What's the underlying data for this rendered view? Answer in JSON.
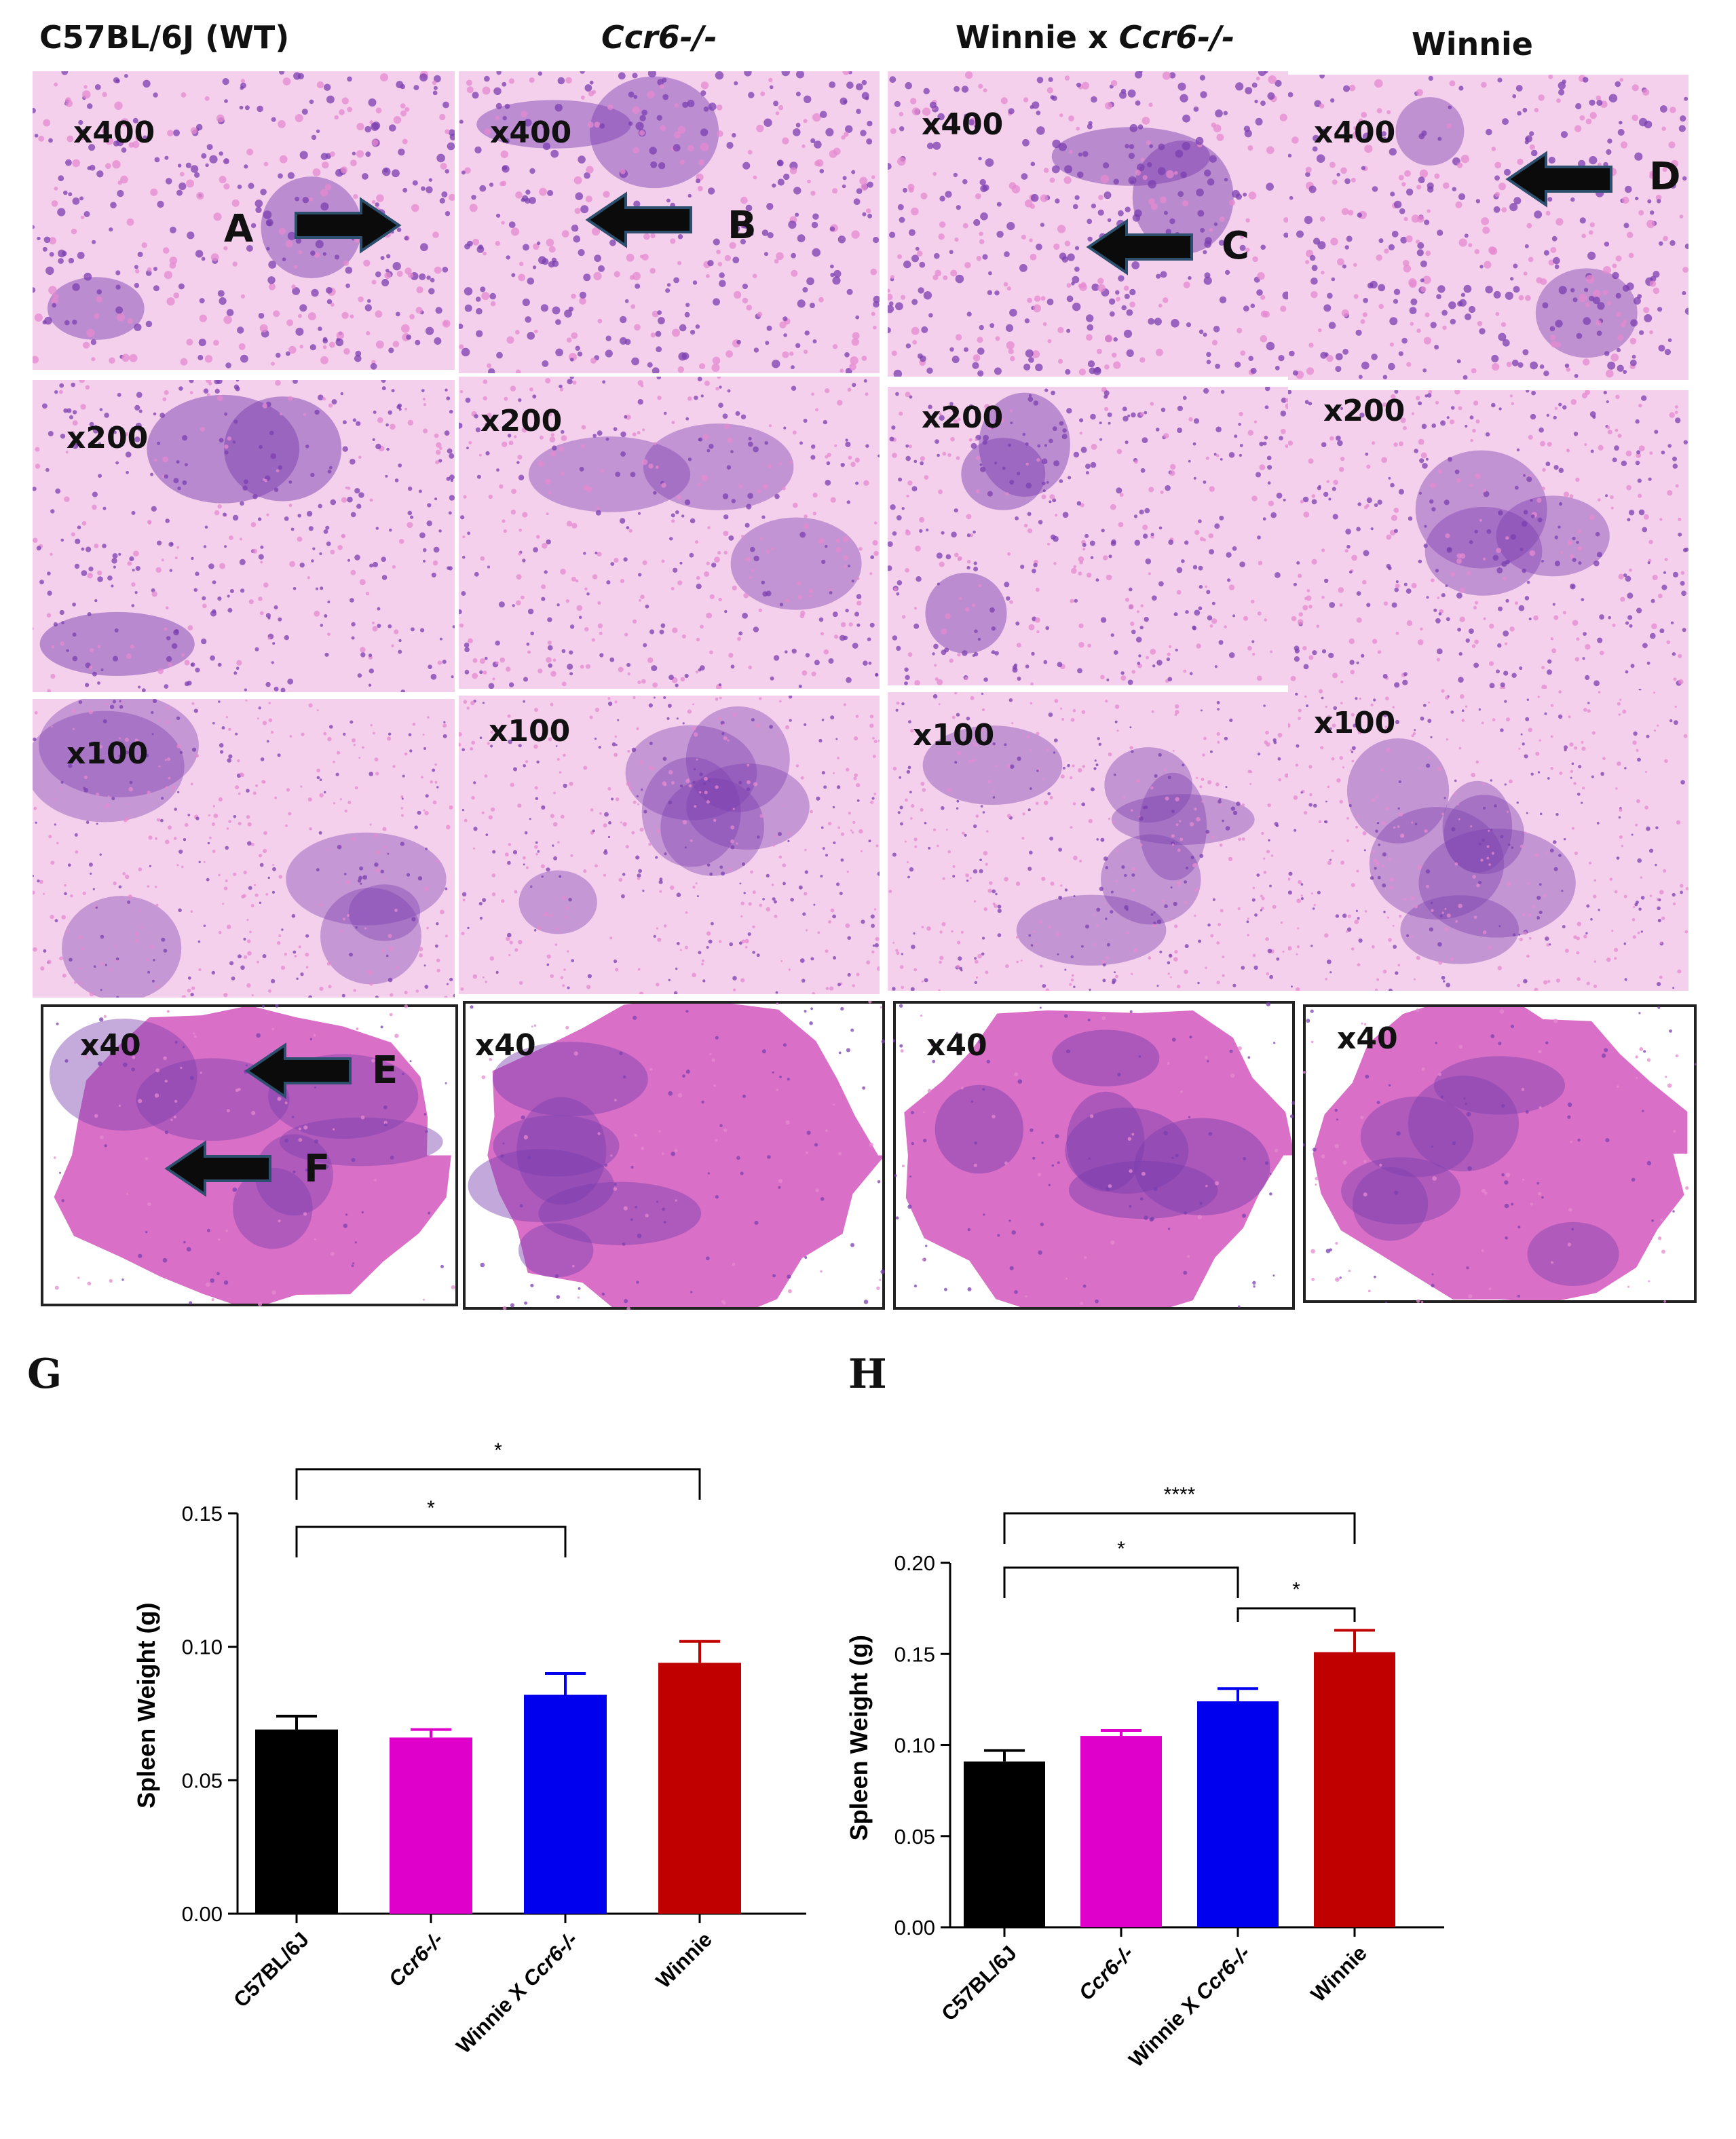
{
  "figure": {
    "column_headers": [
      {
        "prefix": "C57BL/6J (WT)",
        "italic": ""
      },
      {
        "prefix": "",
        "italic": "Ccr6-/-"
      },
      {
        "prefix": "Winnie x ",
        "italic": "Ccr6-/-"
      },
      {
        "prefix": "Winnie",
        "italic": ""
      }
    ],
    "rows": [
      {
        "magnification": "x400",
        "arrows": [
          "A",
          "B",
          "C",
          "D"
        ]
      },
      {
        "magnification": "x200",
        "arrows": []
      },
      {
        "magnification": "x100",
        "arrows": []
      },
      {
        "magnification": "x40",
        "arrows": [
          "E",
          "F"
        ]
      }
    ],
    "stain_colors": {
      "nuclei": "#7b3fb0",
      "eosin": "#e58ad0",
      "background": "#f4d0ec"
    },
    "panels": {
      "g": "G",
      "h": "H"
    }
  },
  "chart_data": [
    {
      "panel": "G",
      "type": "bar",
      "categories": [
        "C57BL/6J",
        "Ccr6-/-",
        "Winnie X Ccr6-/-",
        "Winnie"
      ],
      "values": [
        0.069,
        0.066,
        0.082,
        0.094
      ],
      "errors": [
        0.005,
        0.003,
        0.008,
        0.008
      ],
      "colors": [
        "#000000",
        "#e000cc",
        "#0000ee",
        "#c00000"
      ],
      "ylabel": "Spleen Weight (g)",
      "ylim": [
        0,
        0.15
      ],
      "yticks": [
        "0.00",
        "0.05",
        "0.10",
        "0.15"
      ],
      "ytick_values": [
        0,
        0.05,
        0.1,
        0.15
      ],
      "significance": [
        {
          "from": 0,
          "to": 3,
          "label": "*"
        },
        {
          "from": 0,
          "to": 2,
          "label": "*"
        }
      ]
    },
    {
      "panel": "H",
      "type": "bar",
      "categories": [
        "C57BL/6J",
        "Ccr6-/-",
        "Winnie X Ccr6-/-",
        "Winnie"
      ],
      "values": [
        0.091,
        0.105,
        0.124,
        0.151
      ],
      "errors": [
        0.006,
        0.003,
        0.007,
        0.012
      ],
      "colors": [
        "#000000",
        "#e000cc",
        "#0000ee",
        "#c00000"
      ],
      "ylabel": "Spleen Weight (g)",
      "ylim": [
        0,
        0.2
      ],
      "yticks": [
        "0.00",
        "0.05",
        "0.10",
        "0.15",
        "0.20"
      ],
      "ytick_values": [
        0,
        0.05,
        0.1,
        0.15,
        0.2
      ],
      "significance": [
        {
          "from": 0,
          "to": 3,
          "label": "****"
        },
        {
          "from": 0,
          "to": 2,
          "label": "*"
        },
        {
          "from": 2,
          "to": 3,
          "label": "*"
        }
      ]
    }
  ]
}
